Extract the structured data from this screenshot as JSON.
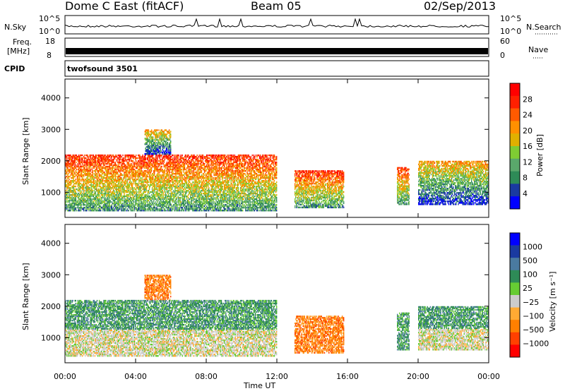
{
  "header": {
    "station": "Dome C East (fitACF)",
    "beam": "Beam 05",
    "date": "02/Sep/2013"
  },
  "top_panels": {
    "nsky_label": "N.Sky",
    "nsky_ticks": [
      "10^5",
      "10^0"
    ],
    "nsearch_label": "N.Search",
    "nsearch_ticks": [
      "10^5",
      "10^0"
    ],
    "freq_label_1": "Freq.",
    "freq_label_2": "[MHz]",
    "freq_ticks": [
      "18",
      "8"
    ],
    "nave_label": "Nave",
    "nave_ticks": [
      "60",
      "0"
    ],
    "cpid_label": "CPID",
    "cpid_value": "twofsound 3501"
  },
  "colors": {
    "power_scale": [
      "#0000ff",
      "#1a3aa0",
      "#2e8b57",
      "#5aa86b",
      "#7fcc33",
      "#e0b000",
      "#ff9000",
      "#ff5a00",
      "#ff2000",
      "#ff0000"
    ],
    "velocity_scale": [
      "#ff0000",
      "#ff4000",
      "#ff8000",
      "#ffaa33",
      "#cccccc",
      "#66cc33",
      "#2e8b57",
      "#4a7aa0",
      "#1a3aa0",
      "#0000ff"
    ]
  },
  "chart_data": [
    {
      "type": "heatmap",
      "name": "power",
      "xlabel": "",
      "ylabel": "Slant Range [km]",
      "x_ticks": [
        "00:00",
        "04:00",
        "08:00",
        "12:00",
        "16:00",
        "20:00",
        "00:00"
      ],
      "x_range_hours": [
        0,
        24
      ],
      "y_ticks": [
        "1000",
        "2000",
        "3000",
        "4000"
      ],
      "y_range_km": [
        200,
        4600
      ],
      "colorbar_label": "Power [dB]",
      "colorbar_ticks": [
        "4",
        "8",
        "12",
        "16",
        "20",
        "24",
        "28"
      ],
      "colorbar_range": [
        0,
        32
      ],
      "echo_regions": [
        {
          "t0": 0.0,
          "t1": 12.0,
          "r0": 400,
          "r1": 2200,
          "level": "strong"
        },
        {
          "t0": 4.5,
          "t1": 6.0,
          "r0": 2200,
          "r1": 3000,
          "level": "medium"
        },
        {
          "t0": 13.0,
          "t1": 15.8,
          "r0": 500,
          "r1": 1700,
          "level": "strong"
        },
        {
          "t0": 18.8,
          "t1": 19.5,
          "r0": 600,
          "r1": 1800,
          "level": "strong"
        },
        {
          "t0": 20.0,
          "t1": 24.0,
          "r0": 600,
          "r1": 2000,
          "level": "medium"
        }
      ]
    },
    {
      "type": "heatmap",
      "name": "velocity",
      "xlabel": "Time UT",
      "ylabel": "Slant Range [km]",
      "x_ticks": [
        "00:00",
        "04:00",
        "08:00",
        "12:00",
        "16:00",
        "20:00",
        "00:00"
      ],
      "x_range_hours": [
        0,
        24
      ],
      "y_ticks": [
        "1000",
        "2000",
        "3000",
        "4000"
      ],
      "y_range_km": [
        200,
        4600
      ],
      "colorbar_label": "Velocity [m s⁻¹]",
      "colorbar_ticks": [
        "1000",
        "500",
        "100",
        "25",
        "−25",
        "−100",
        "−500",
        "−1000"
      ],
      "echo_regions": [
        {
          "t0": 0.0,
          "t1": 12.0,
          "r0": 400,
          "r1": 2200,
          "level": "mixed"
        },
        {
          "t0": 4.5,
          "t1": 6.0,
          "r0": 2200,
          "r1": 3000,
          "level": "negative"
        },
        {
          "t0": 13.0,
          "t1": 15.8,
          "r0": 500,
          "r1": 1700,
          "level": "negative"
        },
        {
          "t0": 18.8,
          "t1": 19.5,
          "r0": 600,
          "r1": 1800,
          "level": "positive"
        },
        {
          "t0": 20.0,
          "t1": 24.0,
          "r0": 600,
          "r1": 2000,
          "level": "mixed"
        }
      ]
    }
  ]
}
